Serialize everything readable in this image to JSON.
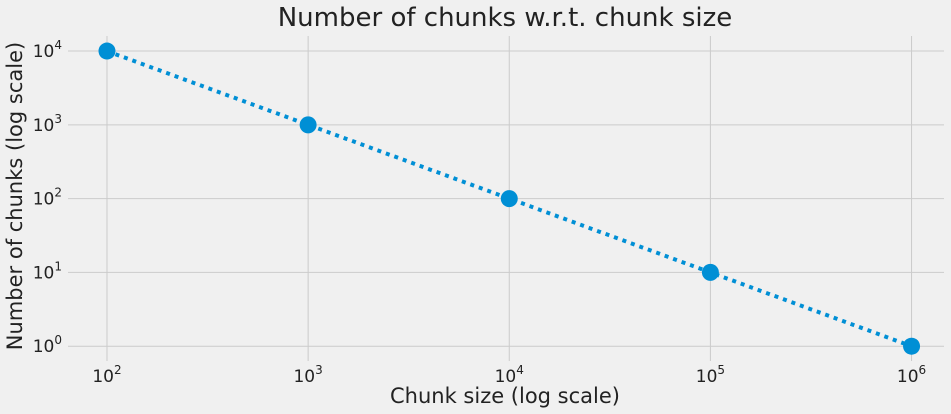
{
  "chart_data": {
    "type": "line",
    "title": "Number of chunks w.r.t. chunk size",
    "xlabel": "Chunk size (log scale)",
    "ylabel": "Number of chunks (log scale)",
    "x_scale": "log",
    "y_scale": "log",
    "xlim": [
      64,
      1450000
    ],
    "ylim": [
      0.63,
      16000
    ],
    "x_ticks": [
      {
        "base": "10",
        "exp": "2",
        "value": 100
      },
      {
        "base": "10",
        "exp": "3",
        "value": 1000
      },
      {
        "base": "10",
        "exp": "4",
        "value": 10000
      },
      {
        "base": "10",
        "exp": "5",
        "value": 100000
      },
      {
        "base": "10",
        "exp": "6",
        "value": 1000000
      }
    ],
    "y_ticks": [
      {
        "base": "10",
        "exp": "0",
        "value": 1
      },
      {
        "base": "10",
        "exp": "1",
        "value": 10
      },
      {
        "base": "10",
        "exp": "2",
        "value": 100
      },
      {
        "base": "10",
        "exp": "3",
        "value": 1000
      },
      {
        "base": "10",
        "exp": "4",
        "value": 10000
      }
    ],
    "grid": true,
    "line_style": "dotted",
    "marker": "circle",
    "colors": {
      "series": "#008fd5",
      "background": "#f0f0f0",
      "grid": "#cbcbcb",
      "text": "#222222"
    },
    "series": [
      {
        "points": [
          {
            "x": 100,
            "y": 10000
          },
          {
            "x": 1000,
            "y": 1000
          },
          {
            "x": 10000,
            "y": 100
          },
          {
            "x": 100000,
            "y": 10
          },
          {
            "x": 1000000,
            "y": 1
          }
        ]
      }
    ]
  }
}
